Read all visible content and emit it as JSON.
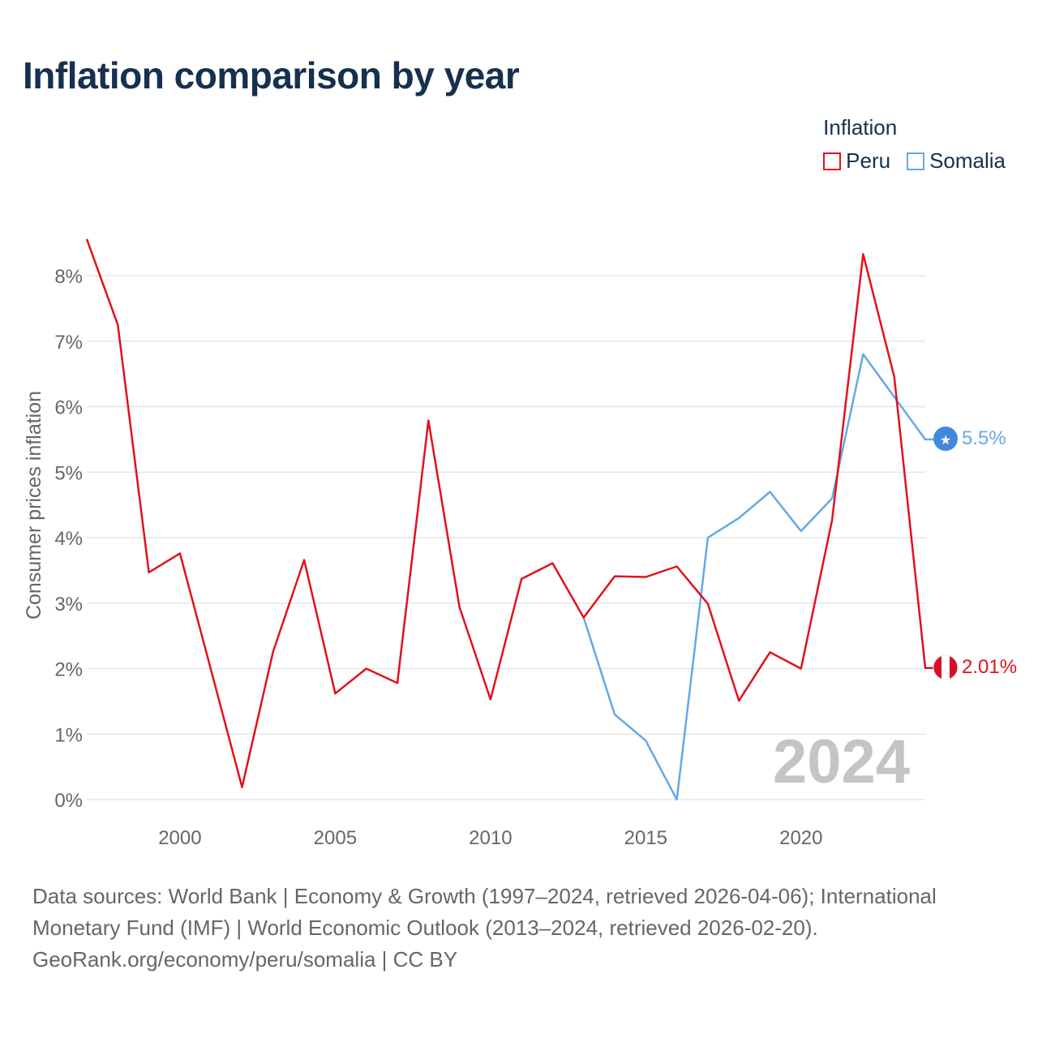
{
  "title": "Inflation comparison by year",
  "legend": {
    "title": "Inflation",
    "items": [
      {
        "label": "Peru",
        "color": "#e3101c"
      },
      {
        "label": "Somalia",
        "color": "#63a9e6"
      }
    ]
  },
  "watermark_year": "2024",
  "source": {
    "line1": "Data sources: World Bank | Economy & Growth (1997–2024, retrieved 2026-04-06); International",
    "line2": "Monetary Fund (IMF) | World Economic Outlook (2013–2024, retrieved 2026-02-20).",
    "line3": "GeoRank.org/economy/peru/somalia | CC BY"
  },
  "chart_data": {
    "type": "line",
    "ylabel": "Consumer prices inflation",
    "xlabel": "",
    "xlim": [
      1997,
      2024
    ],
    "ylim": [
      0,
      8
    ],
    "yticks": [
      0,
      1,
      2,
      3,
      4,
      5,
      6,
      7,
      8
    ],
    "ytick_labels": [
      "0%",
      "1%",
      "2%",
      "3%",
      "4%",
      "5%",
      "6%",
      "7%",
      "8%"
    ],
    "xticks": [
      2000,
      2005,
      2010,
      2015,
      2020
    ],
    "xtick_labels": [
      "2000",
      "2005",
      "2010",
      "2015",
      "2020"
    ],
    "grid": true,
    "series": [
      {
        "name": "Peru",
        "color": "#e3101c",
        "end_label": "2.01%",
        "end_icon": "peru-flag-icon",
        "x": [
          1997,
          1998,
          1999,
          2000,
          2001,
          2002,
          2003,
          2004,
          2005,
          2006,
          2007,
          2008,
          2009,
          2010,
          2011,
          2012,
          2013,
          2014,
          2015,
          2016,
          2017,
          2018,
          2019,
          2020,
          2021,
          2022,
          2023,
          2024
        ],
        "values": [
          8.56,
          7.25,
          3.47,
          3.76,
          1.98,
          0.19,
          2.26,
          3.66,
          1.62,
          2.0,
          1.78,
          5.79,
          2.94,
          1.53,
          3.37,
          3.61,
          2.78,
          3.41,
          3.4,
          3.56,
          2.99,
          1.51,
          2.25,
          2.0,
          4.27,
          8.33,
          6.46,
          2.01
        ]
      },
      {
        "name": "Somalia",
        "color": "#63a9e6",
        "end_label": "5.5%",
        "end_icon": "somalia-flag-icon",
        "x": [
          2013,
          2014,
          2015,
          2016,
          2017,
          2018,
          2019,
          2020,
          2021,
          2022,
          2023,
          2024
        ],
        "values": [
          2.78,
          1.3,
          0.9,
          0.0,
          4.0,
          4.3,
          4.7,
          4.1,
          4.6,
          6.8,
          6.15,
          5.5
        ]
      }
    ]
  }
}
